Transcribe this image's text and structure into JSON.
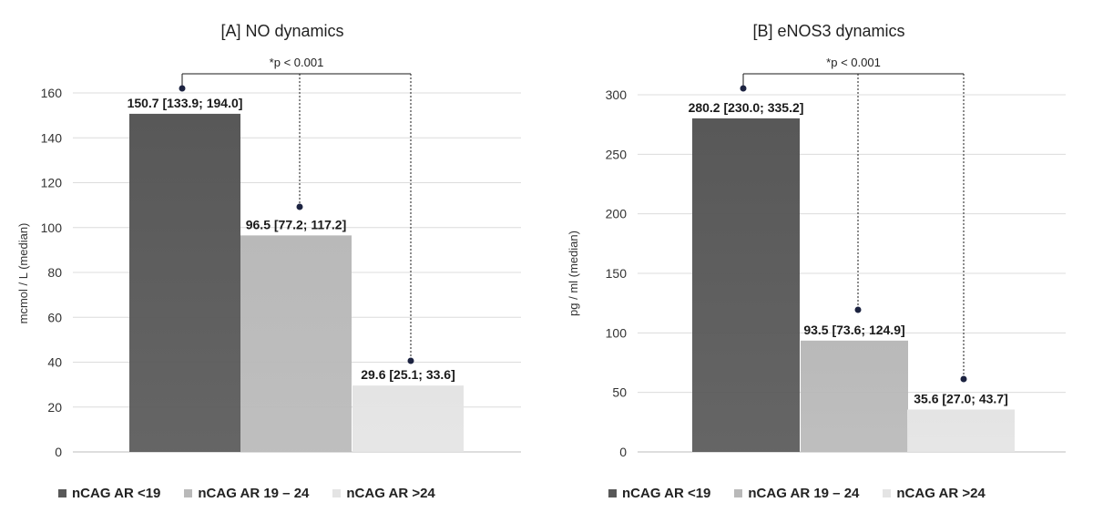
{
  "chart_data": [
    {
      "type": "bar",
      "title": "[A] NO dynamics",
      "ylabel": "mcmol / L (median)",
      "ylim": [
        0,
        160
      ],
      "yticks": [
        0,
        20,
        40,
        60,
        80,
        100,
        120,
        140,
        160
      ],
      "categories": [
        "nCAG AR <19",
        "nCAG AR 19 – 24",
        "nCAG AR >24"
      ],
      "values": [
        150.7,
        96.5,
        29.6
      ],
      "data_labels": [
        "150.7 [133.9; 194.0]",
        "96.5 [77.2; 117.2]",
        "29.6 [25.1; 33.6]"
      ],
      "annotation": "*p < 0.001",
      "grid": true,
      "legend_position": "bottom"
    },
    {
      "type": "bar",
      "title": "[B] eNOS3 dynamics",
      "ylabel": "pg / ml (median)",
      "ylim": [
        0,
        300
      ],
      "yticks": [
        0,
        50,
        100,
        150,
        200,
        250,
        300
      ],
      "categories": [
        "nCAG AR <19",
        "nCAG AR 19 – 24",
        "nCAG AR >24"
      ],
      "values": [
        280.2,
        93.5,
        35.6
      ],
      "data_labels": [
        "280.2 [230.0; 335.2]",
        "93.5 [73.6; 124.9]",
        "35.6 [27.0; 43.7]"
      ],
      "annotation": "*p < 0.001",
      "grid": true,
      "legend_position": "bottom"
    }
  ],
  "colors": {
    "series": [
      "#585858",
      "#b9b9b9",
      "#e4e4e4"
    ],
    "grid": "#dcdcdc",
    "marker": "#1c2340"
  }
}
